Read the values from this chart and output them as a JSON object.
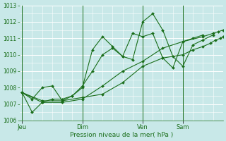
{
  "title": "",
  "xlabel": "Pression niveau de la mer( hPa )",
  "ylabel": "",
  "bg_color": "#c8e8e8",
  "grid_color": "#ffffff",
  "line_color": "#1a6e1a",
  "ylim": [
    1006,
    1013
  ],
  "yticks": [
    1006,
    1007,
    1008,
    1009,
    1010,
    1011,
    1012,
    1013
  ],
  "xtick_labels": [
    "Jeu",
    "Dim",
    "Ven",
    "Sam"
  ],
  "xtick_positions": [
    0,
    24,
    48,
    64
  ],
  "vline_positions": [
    0,
    24,
    48,
    64
  ],
  "xlim": [
    -1,
    80
  ],
  "series": [
    {
      "x": [
        0,
        4,
        8,
        12,
        16,
        20,
        24,
        28,
        32,
        36,
        40,
        44,
        48,
        52,
        56,
        60,
        64,
        68,
        72,
        76
      ],
      "y": [
        1007.7,
        1007.3,
        1008.0,
        1008.1,
        1007.2,
        1007.5,
        1008.1,
        1009.0,
        1010.0,
        1010.4,
        1009.9,
        1009.7,
        1012.0,
        1012.5,
        1011.5,
        1009.9,
        1009.3,
        1010.6,
        1010.9,
        1011.2
      ]
    },
    {
      "x": [
        0,
        4,
        8,
        12,
        16,
        20,
        24,
        28,
        32,
        36,
        40,
        44,
        48,
        52,
        56,
        60,
        64,
        68,
        72
      ],
      "y": [
        1007.7,
        1006.5,
        1007.1,
        1007.3,
        1007.3,
        1007.5,
        1008.0,
        1010.3,
        1011.1,
        1010.5,
        1009.9,
        1011.3,
        1011.1,
        1011.3,
        1009.8,
        1009.2,
        1010.8,
        1011.0,
        1011.2
      ]
    },
    {
      "x": [
        0,
        8,
        16,
        24,
        32,
        40,
        48,
        56,
        64,
        72,
        76,
        78,
        80
      ],
      "y": [
        1007.7,
        1007.1,
        1007.1,
        1007.3,
        1008.1,
        1009.0,
        1009.6,
        1010.4,
        1010.8,
        1011.1,
        1011.3,
        1011.4,
        1011.5
      ]
    },
    {
      "x": [
        0,
        8,
        16,
        24,
        32,
        40,
        48,
        56,
        64,
        68,
        72,
        75,
        77,
        79,
        80
      ],
      "y": [
        1007.7,
        1007.2,
        1007.2,
        1007.4,
        1007.6,
        1008.3,
        1009.3,
        1009.8,
        1010.0,
        1010.3,
        1010.5,
        1010.7,
        1010.9,
        1011.0,
        1011.1
      ]
    }
  ]
}
